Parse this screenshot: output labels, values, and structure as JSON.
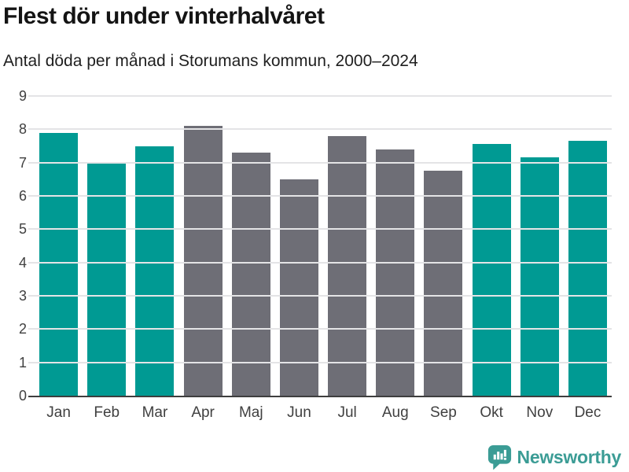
{
  "header": {
    "title": "Flest dör under vinterhalvåret",
    "subtitle": "Antal döda per månad i Storumans kommun, 2000–2024"
  },
  "colors": {
    "teal": "#009a93",
    "gray": "#6e6e76",
    "gridline": "#e4e4e6",
    "axis": "#3e3e3e",
    "tick_text": "#404040",
    "logo_teal": "#3b9c95"
  },
  "chart_data": {
    "type": "bar",
    "title": "Flest dör under vinterhalvåret",
    "subtitle": "Antal döda per månad i Storumans kommun, 2000–2024",
    "categories": [
      "Jan",
      "Feb",
      "Mar",
      "Apr",
      "Maj",
      "Jun",
      "Jul",
      "Aug",
      "Sep",
      "Okt",
      "Nov",
      "Dec"
    ],
    "values": [
      7.9,
      7.0,
      7.5,
      8.1,
      7.3,
      6.5,
      7.8,
      7.4,
      6.75,
      7.55,
      7.15,
      7.65
    ],
    "bar_colors": [
      "teal",
      "teal",
      "teal",
      "gray",
      "gray",
      "gray",
      "gray",
      "gray",
      "gray",
      "teal",
      "teal",
      "teal"
    ],
    "xlabel": "",
    "ylabel": "",
    "ylim": [
      0,
      9
    ],
    "yticks": [
      0,
      1,
      2,
      3,
      4,
      5,
      6,
      7,
      8,
      9
    ],
    "grid": true,
    "legend": false
  },
  "footer": {
    "brand": "Newsworthy",
    "logo_icon": "speech-bubble-bar-chart-icon"
  }
}
